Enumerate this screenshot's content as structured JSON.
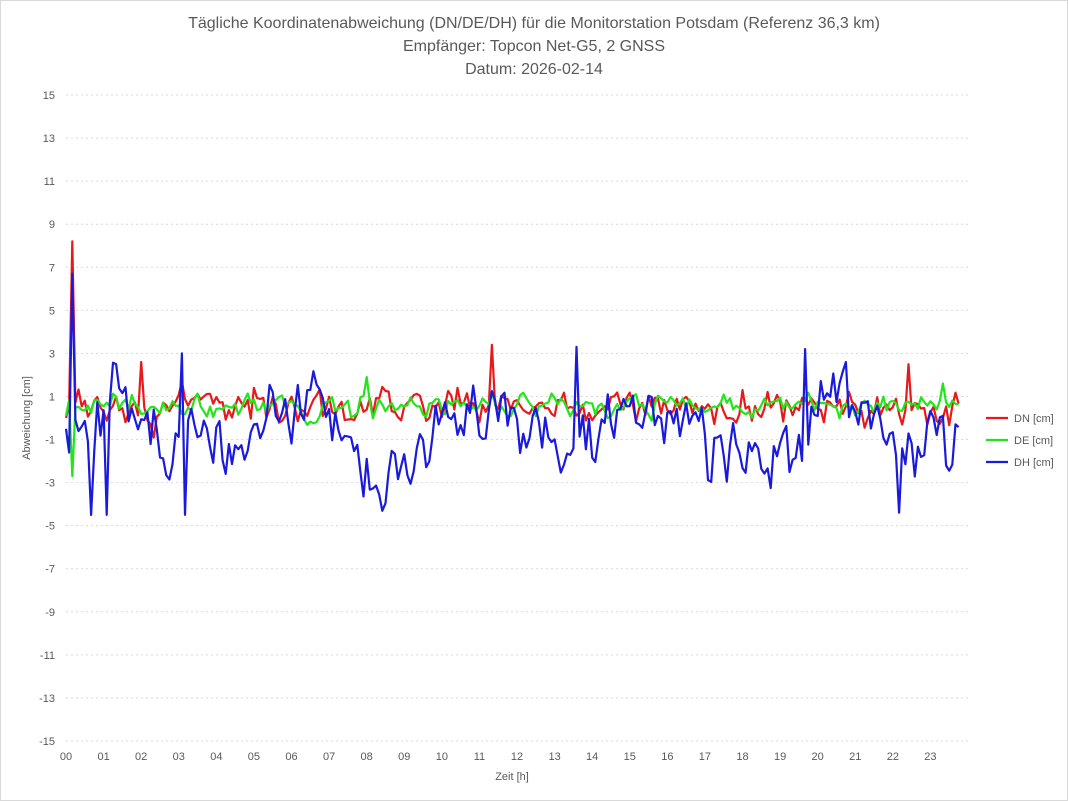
{
  "chart_data": {
    "type": "line",
    "title_lines": [
      "Tägliche Koordinatenabweichung (DN/DE/DH) für die Monitorstation Potsdam (Referenz 36,3 km)",
      "Empfänger: Topcon Net-G5, 2 GNSS",
      "Datum: 2026-02-14"
    ],
    "xlabel": "Zeit [h]",
    "ylabel": "Abweichung [cm]",
    "xlim": [
      0,
      24
    ],
    "ylim": [
      -15,
      15
    ],
    "x_ticks": [
      "00",
      "01",
      "02",
      "03",
      "04",
      "05",
      "06",
      "07",
      "08",
      "09",
      "10",
      "11",
      "12",
      "13",
      "14",
      "15",
      "16",
      "17",
      "18",
      "19",
      "20",
      "21",
      "22",
      "23"
    ],
    "y_ticks": [
      15,
      13,
      11,
      9,
      7,
      5,
      3,
      1,
      -1,
      -3,
      -5,
      -7,
      -9,
      -11,
      -13,
      -15
    ],
    "grid": "horizontal",
    "legend_position": "right",
    "series": [
      {
        "name": "DN [cm]",
        "color": "#e8191b"
      },
      {
        "name": "DE [cm]",
        "color": "#22e51a"
      },
      {
        "name": "DH [cm]",
        "color": "#1a1add"
      }
    ],
    "sample_interval_h": 0.0833333,
    "peaks": {
      "DN": [
        {
          "x": 0.15,
          "y": 8.2
        },
        {
          "x": 11.3,
          "y": 3.4
        },
        {
          "x": 22.4,
          "y": 2.5
        },
        {
          "x": 2.0,
          "y": 2.6
        }
      ],
      "DE": [
        {
          "x": 0.15,
          "y": -2.7
        },
        {
          "x": 8.0,
          "y": 1.9
        },
        {
          "x": 23.3,
          "y": 1.6
        }
      ],
      "DH": [
        {
          "x": 0.15,
          "y": 6.7
        },
        {
          "x": 3.1,
          "y": 3.0
        },
        {
          "x": 3.15,
          "y": -4.5
        },
        {
          "x": 13.6,
          "y": 3.3
        },
        {
          "x": 19.7,
          "y": 3.2
        },
        {
          "x": 22.2,
          "y": -4.4
        },
        {
          "x": 0.7,
          "y": -4.5
        },
        {
          "x": 1.05,
          "y": -4.5
        }
      ]
    }
  }
}
